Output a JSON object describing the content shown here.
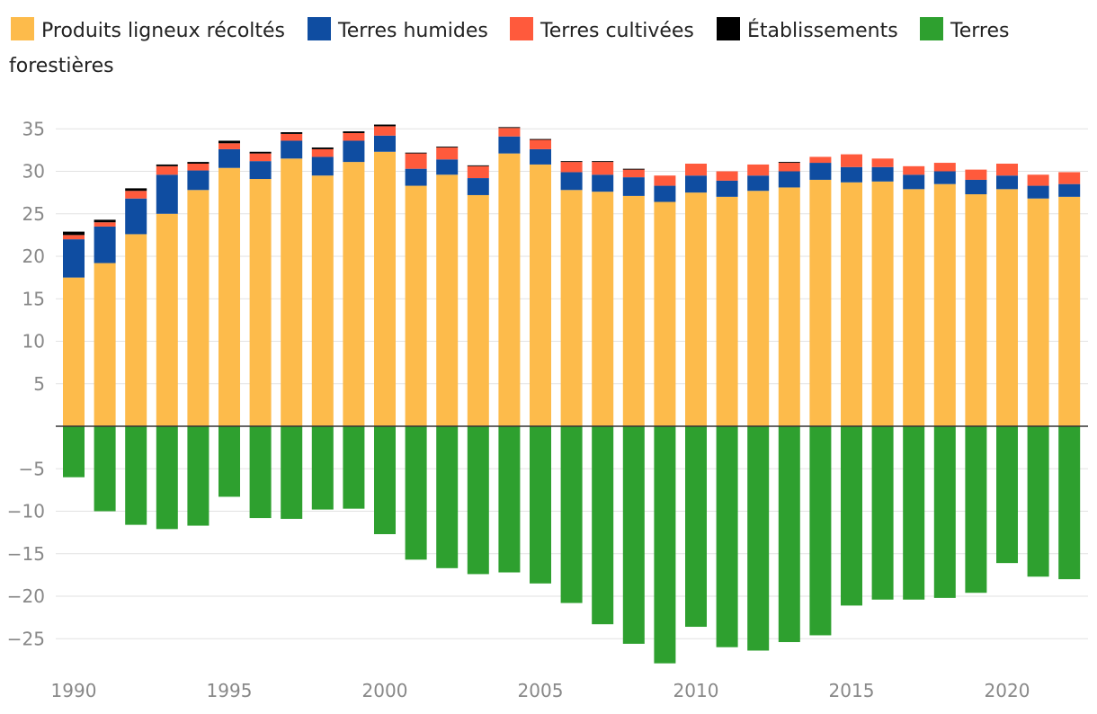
{
  "chart_data": {
    "type": "bar",
    "stacked": true,
    "title": "",
    "xlabel": "",
    "ylabel": "",
    "ylim": [
      -28.5,
      36
    ],
    "y_ticks": [
      35,
      30,
      25,
      20,
      15,
      10,
      5,
      -5,
      -10,
      -15,
      -20,
      -25
    ],
    "y_tick_labels": [
      "35",
      "30",
      "25",
      "20",
      "15",
      "10",
      "5",
      "−5",
      "−10",
      "−15",
      "−20",
      "−25"
    ],
    "x_tick_labels": [
      "1990",
      "1995",
      "2000",
      "2005",
      "2010",
      "2015",
      "2020"
    ],
    "x_tick_years": [
      1990,
      1995,
      2000,
      2005,
      2010,
      2015,
      2020
    ],
    "grid": true,
    "legend_position": "top",
    "categories": [
      1990,
      1991,
      1992,
      1993,
      1994,
      1995,
      1996,
      1997,
      1998,
      1999,
      2000,
      2001,
      2002,
      2003,
      2004,
      2005,
      2006,
      2007,
      2008,
      2009,
      2010,
      2011,
      2012,
      2013,
      2014,
      2015,
      2016,
      2017,
      2018,
      2019,
      2020,
      2021,
      2022
    ],
    "series": [
      {
        "name": "Produits ligneux récoltés",
        "color": "#FDBB4B",
        "values": [
          17.5,
          19.2,
          22.6,
          25.0,
          27.8,
          30.4,
          29.1,
          31.5,
          29.5,
          31.1,
          32.3,
          28.3,
          29.6,
          27.2,
          32.1,
          30.8,
          27.8,
          27.6,
          27.1,
          26.4,
          27.5,
          27.0,
          27.7,
          28.1,
          29.0,
          28.7,
          28.8,
          27.9,
          28.5,
          27.3,
          27.9,
          26.8,
          27.0
        ]
      },
      {
        "name": "Terres humides",
        "color": "#0F4DA1",
        "values": [
          4.5,
          4.3,
          4.2,
          4.6,
          2.3,
          2.2,
          2.1,
          2.1,
          2.2,
          2.5,
          1.9,
          2.0,
          1.8,
          2.0,
          2.0,
          1.8,
          2.1,
          2.0,
          2.2,
          1.9,
          2.0,
          1.9,
          1.8,
          1.9,
          2.0,
          1.8,
          1.7,
          1.7,
          1.5,
          1.7,
          1.6,
          1.5,
          1.5
        ]
      },
      {
        "name": "Terres cultivées",
        "color": "#FF5A3C",
        "values": [
          0.5,
          0.5,
          0.9,
          1.0,
          0.8,
          0.7,
          0.9,
          0.8,
          0.9,
          0.9,
          1.1,
          1.8,
          1.4,
          1.4,
          1.0,
          1.1,
          1.2,
          1.5,
          0.9,
          1.2,
          1.4,
          1.1,
          1.3,
          1.0,
          0.7,
          1.5,
          1.0,
          1.0,
          1.0,
          1.2,
          1.4,
          1.3,
          1.4
        ]
      },
      {
        "name": "Établissements",
        "color": "#000000",
        "values": [
          0.4,
          0.3,
          0.3,
          0.2,
          0.2,
          0.3,
          0.2,
          0.2,
          0.2,
          0.2,
          0.2,
          0.1,
          0.1,
          0.1,
          0.1,
          0.1,
          0.1,
          0.1,
          0.1,
          0.0,
          0.0,
          0.0,
          0.0,
          0.1,
          0.0,
          0.0,
          0.0,
          0.0,
          0.0,
          0.0,
          0.0,
          0.0,
          0.0
        ]
      },
      {
        "name": "Terres forestières",
        "color": "#2EA02F",
        "values": [
          -6.0,
          -10.0,
          -11.6,
          -12.1,
          -11.7,
          -8.3,
          -10.8,
          -10.9,
          -9.8,
          -9.7,
          -12.7,
          -15.7,
          -16.7,
          -17.4,
          -17.2,
          -18.5,
          -20.8,
          -23.3,
          -25.6,
          -27.9,
          -23.6,
          -26.0,
          -26.4,
          -25.4,
          -24.6,
          -21.1,
          -20.4,
          -20.4,
          -20.2,
          -19.6,
          -16.1,
          -17.7,
          -18.0
        ]
      }
    ]
  }
}
